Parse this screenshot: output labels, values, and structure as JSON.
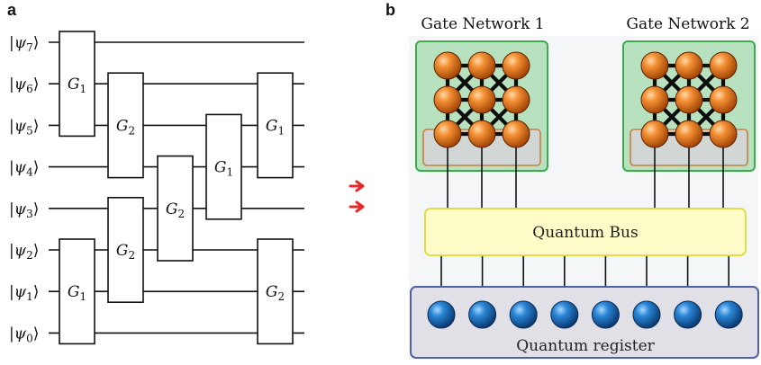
{
  "panel_a": {
    "label": "a",
    "qubits": [
      "7",
      "6",
      "5",
      "4",
      "3",
      "2",
      "1",
      "0"
    ],
    "gates": [
      {
        "name": "G",
        "index": "1",
        "top": 0,
        "bottom": 2,
        "col": 0
      },
      {
        "name": "G",
        "index": "2",
        "top": 1,
        "bottom": 3,
        "col": 1
      },
      {
        "name": "G",
        "index": "1",
        "top": 5,
        "bottom": 7,
        "col": 0
      },
      {
        "name": "G",
        "index": "2",
        "top": 4,
        "bottom": 6,
        "col": 1
      },
      {
        "name": "G",
        "index": "2",
        "top": 3,
        "bottom": 5,
        "col": 2
      },
      {
        "name": "G",
        "index": "1",
        "top": 2,
        "bottom": 4,
        "col": 3
      },
      {
        "name": "G",
        "index": "1",
        "top": 1,
        "bottom": 3,
        "col": 4
      },
      {
        "name": "G",
        "index": "2",
        "top": 5,
        "bottom": 7,
        "col": 4
      }
    ]
  },
  "panel_b": {
    "label": "b",
    "gate_network_1_title": "Gate Network 1",
    "gate_network_2_title": "Gate Network 2",
    "bus_label": "Quantum Bus",
    "register_label": "Quantum register",
    "register_qubit_count": 8
  },
  "colors": {
    "orange_node": "#e0701a",
    "blue_node": "#1a5fa8",
    "network_bg": "#b8e2bf",
    "network_border": "#3cab4a",
    "bus_bg": "#fdfbc8",
    "bus_border": "#e2dc4a",
    "register_bg": "#e0e0e6",
    "register_border": "#5161a8",
    "arrow_red": "#e8282b"
  }
}
